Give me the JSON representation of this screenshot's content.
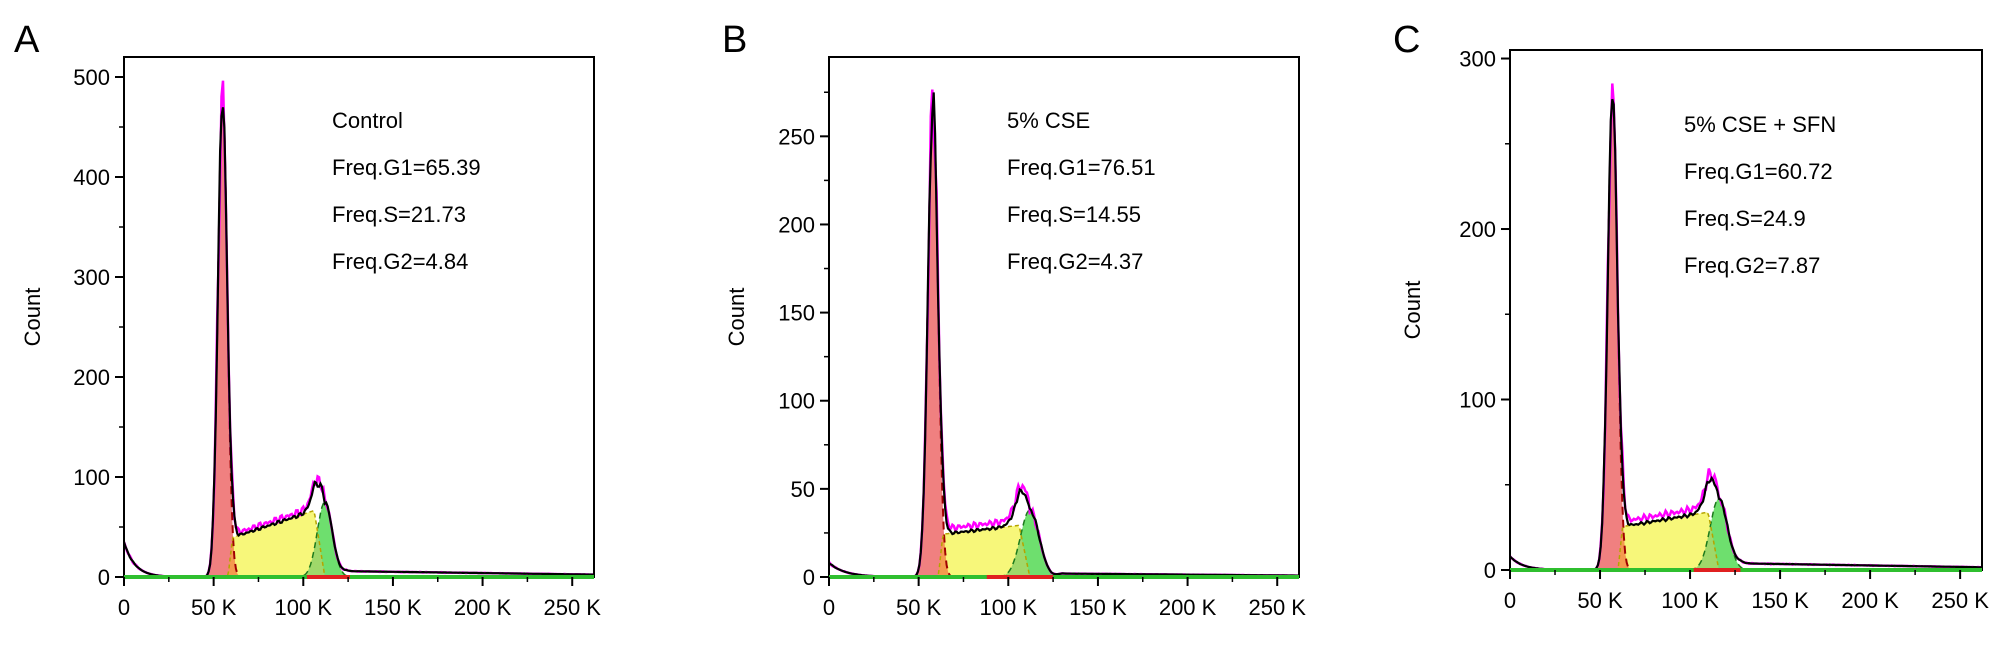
{
  "chart_data": [
    {
      "type": "area",
      "panel": "A",
      "ylabel": "Count",
      "xlim": [
        0,
        262144
      ],
      "ylim": [
        0,
        520
      ],
      "x_ticks": [
        0,
        50000,
        100000,
        150000,
        200000,
        250000
      ],
      "x_tick_labels": [
        "0",
        "50 K",
        "100 K",
        "150 K",
        "200 K",
        "250 K"
      ],
      "y_ticks": [
        0,
        100,
        200,
        300,
        400,
        500
      ],
      "y_tick_labels": [
        "0",
        "100",
        "200",
        "300",
        "400",
        "500"
      ],
      "annotations": [
        "Control",
        "Freq.G1=65.39",
        "Freq.S=21.73",
        "Freq.G2=4.84"
      ],
      "g1": {
        "mean": 55000,
        "sd": 2600,
        "peak": 480
      },
      "s": {
        "start": 58000,
        "end": 112000,
        "start_height": 38,
        "end_height": 70
      },
      "g2": {
        "mean": 112000,
        "sd": 4200,
        "peak": 75
      },
      "debris": {
        "start_height": 35,
        "decay": 6000
      },
      "tail": {
        "start": 118000,
        "end": 262144,
        "height": 6
      },
      "red_mark": [
        102000,
        126000
      ],
      "colors": {
        "g1": "#f08080",
        "s": "#f7f77a",
        "g2": "#66dd66",
        "overlap": "#f59a4e",
        "envelope": "#ff00ff",
        "data": "#000000",
        "fit": "#a00000"
      }
    },
    {
      "type": "area",
      "panel": "B",
      "ylabel": "Count",
      "xlim": [
        0,
        262144
      ],
      "ylim": [
        0,
        295
      ],
      "x_ticks": [
        0,
        50000,
        100000,
        150000,
        200000,
        250000
      ],
      "x_tick_labels": [
        "0",
        "50 K",
        "100 K",
        "150 K",
        "200 K",
        "250 K"
      ],
      "y_ticks": [
        0,
        50,
        100,
        150,
        200,
        250
      ],
      "y_tick_labels": [
        "0",
        "50",
        "100",
        "150",
        "200",
        "250"
      ],
      "annotations": [
        "5% CSE",
        "Freq.G1=76.51",
        "Freq.S=14.55",
        "Freq.G2=4.37"
      ],
      "g1": {
        "mean": 58000,
        "sd": 2800,
        "peak": 270
      },
      "s": {
        "start": 61000,
        "end": 112000,
        "start_height": 24,
        "end_height": 30
      },
      "g2": {
        "mean": 112000,
        "sd": 5200,
        "peak": 38
      },
      "debris": {
        "start_height": 8,
        "decay": 9000
      },
      "tail": {
        "start": 124000,
        "end": 262144,
        "height": 2
      },
      "red_mark": [
        88000,
        125000
      ],
      "colors": {
        "g1": "#f08080",
        "s": "#f7f77a",
        "g2": "#66dd66",
        "overlap": "#f59a4e",
        "envelope": "#ff00ff",
        "data": "#000000",
        "fit": "#a00000"
      }
    },
    {
      "type": "area",
      "panel": "C",
      "ylabel": "Count",
      "xlim": [
        0,
        262144
      ],
      "ylim": [
        0,
        305
      ],
      "x_ticks": [
        0,
        50000,
        100000,
        150000,
        200000,
        250000
      ],
      "x_tick_labels": [
        "0",
        "50 K",
        "100 K",
        "150 K",
        "200 K",
        "250 K"
      ],
      "y_ticks": [
        0,
        100,
        200,
        300
      ],
      "y_tick_labels": [
        "0",
        "100",
        "200",
        "300"
      ],
      "annotations": [
        "5% CSE + SFN",
        "Freq.G1=60.72",
        "Freq.S=24.9",
        "Freq.G2=7.87"
      ],
      "g1": {
        "mean": 57000,
        "sd": 2700,
        "peak": 280
      },
      "s": {
        "start": 60000,
        "end": 116000,
        "start_height": 25,
        "end_height": 35
      },
      "g2": {
        "mean": 116000,
        "sd": 4800,
        "peak": 42
      },
      "debris": {
        "start_height": 8,
        "decay": 7000
      },
      "tail": {
        "start": 122000,
        "end": 262144,
        "height": 4
      },
      "red_mark": [
        102000,
        128000
      ],
      "colors": {
        "g1": "#f08080",
        "s": "#f7f77a",
        "g2": "#66dd66",
        "overlap": "#f59a4e",
        "envelope": "#ff00ff",
        "data": "#000000",
        "fit": "#a00000"
      }
    }
  ]
}
